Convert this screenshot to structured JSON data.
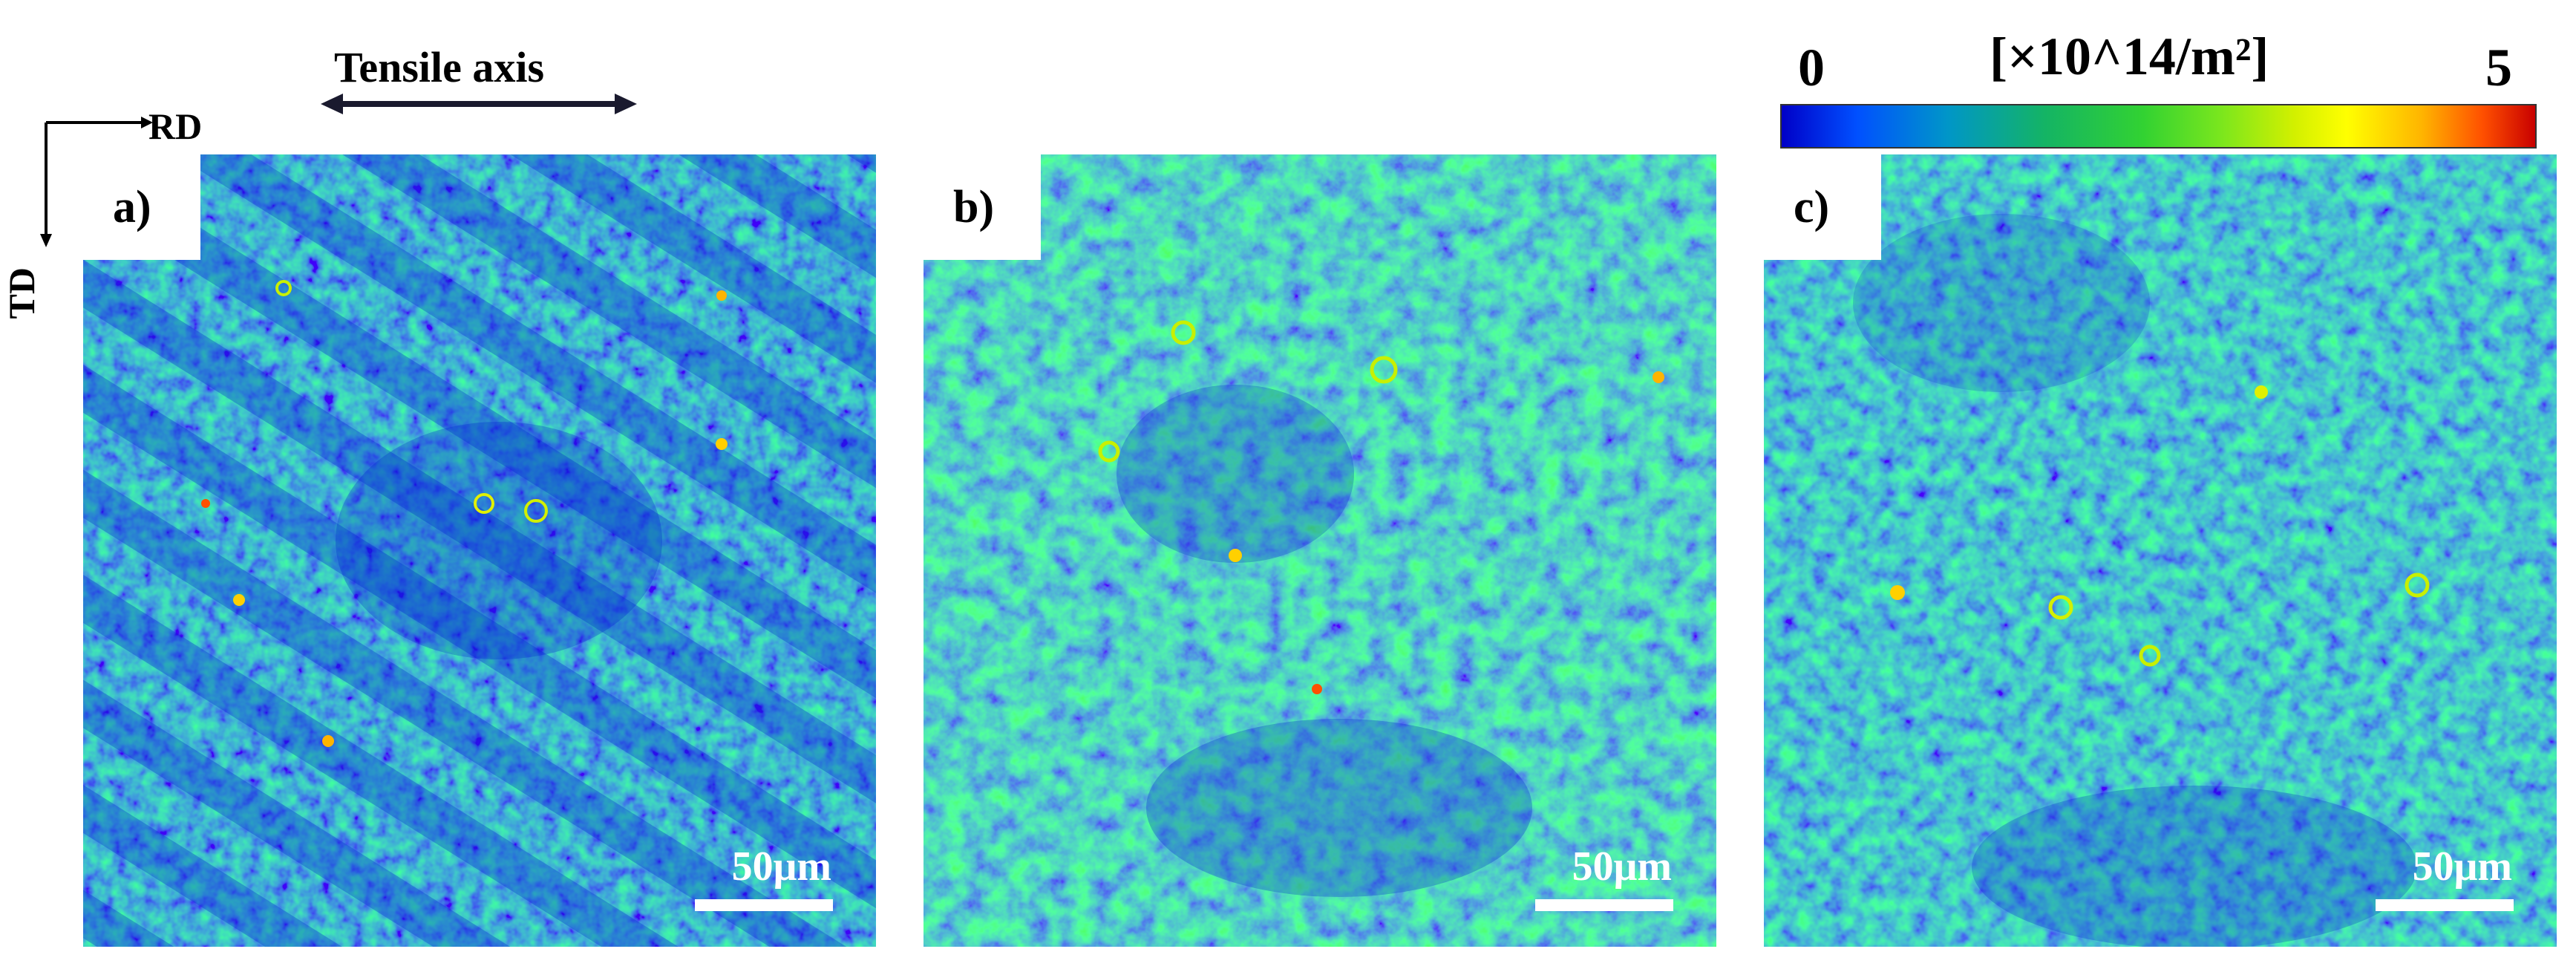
{
  "orientation": {
    "rd_label": "RD",
    "td_label": "TD",
    "tensile_label": "Tensile axis"
  },
  "colorbar": {
    "min_label": "0",
    "max_label": "5",
    "unit_label": "[×10^14/m²]",
    "colors": [
      "#0000c8",
      "#0096c8",
      "#32d232",
      "#ffff00",
      "#ff5000",
      "#c80000"
    ]
  },
  "panels": [
    {
      "label": "a)",
      "scale_label": "50μm"
    },
    {
      "label": "b)",
      "scale_label": "50μm"
    },
    {
      "label": "c)",
      "scale_label": "50μm"
    }
  ]
}
